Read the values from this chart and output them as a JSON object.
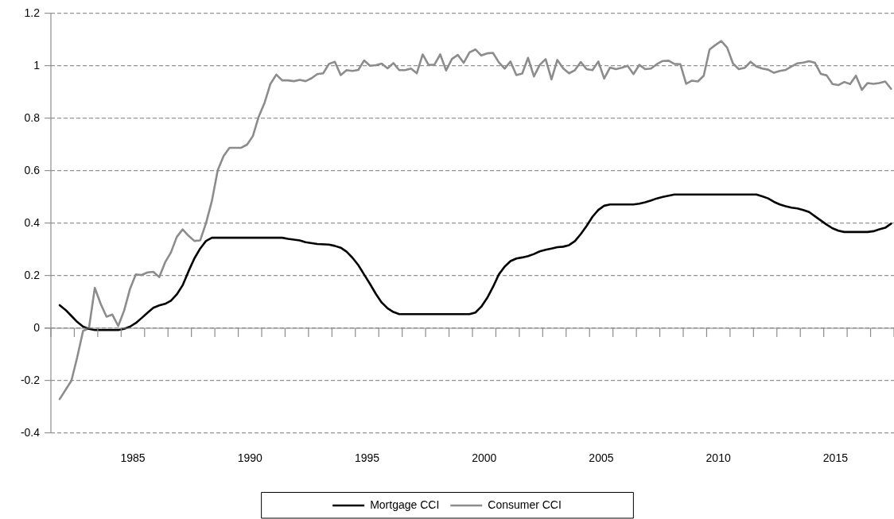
{
  "chart_data": {
    "type": "line",
    "xlim": [
      1982,
      2018
    ],
    "xticks": [
      {
        "value": 1982,
        "label": null
      },
      {
        "value": 1983,
        "label": null
      },
      {
        "value": 1984,
        "label": null
      },
      {
        "value": 1985,
        "label": null
      },
      {
        "value": 1985.5,
        "label": "1985"
      },
      {
        "value": 1986,
        "label": null
      },
      {
        "value": 1987,
        "label": null
      },
      {
        "value": 1988,
        "label": null
      },
      {
        "value": 1989,
        "label": null
      },
      {
        "value": 1990,
        "label": null
      },
      {
        "value": 1990.5,
        "label": "1990"
      },
      {
        "value": 1991,
        "label": null
      },
      {
        "value": 1992,
        "label": null
      },
      {
        "value": 1993,
        "label": null
      },
      {
        "value": 1994,
        "label": null
      },
      {
        "value": 1995,
        "label": null
      },
      {
        "value": 1995.5,
        "label": "1995"
      },
      {
        "value": 1996,
        "label": null
      },
      {
        "value": 1997,
        "label": null
      },
      {
        "value": 1998,
        "label": null
      },
      {
        "value": 1999,
        "label": null
      },
      {
        "value": 2000,
        "label": null
      },
      {
        "value": 2000.5,
        "label": "2000"
      },
      {
        "value": 2001,
        "label": null
      },
      {
        "value": 2002,
        "label": null
      },
      {
        "value": 2003,
        "label": null
      },
      {
        "value": 2004,
        "label": null
      },
      {
        "value": 2005,
        "label": null
      },
      {
        "value": 2005.5,
        "label": "2005"
      },
      {
        "value": 2006,
        "label": null
      },
      {
        "value": 2007,
        "label": null
      },
      {
        "value": 2008,
        "label": null
      },
      {
        "value": 2009,
        "label": null
      },
      {
        "value": 2010,
        "label": null
      },
      {
        "value": 2010.5,
        "label": "2010"
      },
      {
        "value": 2011,
        "label": null
      },
      {
        "value": 2012,
        "label": null
      },
      {
        "value": 2013,
        "label": null
      },
      {
        "value": 2014,
        "label": null
      },
      {
        "value": 2015,
        "label": null
      },
      {
        "value": 2015.5,
        "label": "2015"
      },
      {
        "value": 2016,
        "label": null
      },
      {
        "value": 2017,
        "label": null
      },
      {
        "value": 2018,
        "label": null
      }
    ],
    "ylim": [
      -0.4,
      1.2
    ],
    "yticks": [
      -0.4,
      -0.2,
      0,
      0.2,
      0.4,
      0.6,
      0.8,
      1,
      1.2
    ],
    "grid": "y",
    "legend": "bottom",
    "marker": "none",
    "line_style": "solid",
    "series": [
      {
        "name": "Mortgage CCI",
        "color": "#000000",
        "x": [
          1982.375,
          1982.625,
          1982.875,
          1983.125,
          1983.375,
          1983.625,
          1983.875,
          1984.875,
          1985.125,
          1985.375,
          1985.625,
          1985.875,
          1986.125,
          1986.375,
          1986.625,
          1986.875,
          1987.125,
          1987.375,
          1987.625,
          1987.875,
          1988.125,
          1988.375,
          1988.625,
          1988.875,
          1991.875,
          1992.125,
          1992.625,
          1992.875,
          1993.375,
          1993.875,
          1994.125,
          1994.375,
          1994.625,
          1994.875,
          1995.125,
          1995.375,
          1995.625,
          1995.875,
          1996.125,
          1996.375,
          1996.625,
          1996.875,
          1999.875,
          2000.125,
          2000.375,
          2000.625,
          2000.875,
          2001.125,
          2001.375,
          2001.625,
          2001.875,
          2002.125,
          2002.375,
          2002.625,
          2002.875,
          2003.125,
          2003.375,
          2003.625,
          2003.875,
          2004.125,
          2004.375,
          2004.625,
          2004.875,
          2005.125,
          2005.375,
          2005.625,
          2005.875,
          2006.875,
          2007.125,
          2007.375,
          2007.625,
          2007.875,
          2008.125,
          2008.625,
          2012.125,
          2012.375,
          2012.625,
          2012.875,
          2013.125,
          2013.375,
          2013.625,
          2013.875,
          2014.125,
          2014.375,
          2014.625,
          2014.875,
          2015.125,
          2015.375,
          2015.625,
          2015.875,
          2016.875,
          2017.125,
          2017.375,
          2017.625,
          2017.875
        ],
        "values": [
          0.088,
          0.07,
          0.047,
          0.024,
          0.006,
          -0.002,
          -0.007,
          -0.007,
          -0.002,
          0.006,
          0.02,
          0.039,
          0.059,
          0.078,
          0.087,
          0.093,
          0.105,
          0.129,
          0.164,
          0.217,
          0.266,
          0.304,
          0.333,
          0.345,
          0.345,
          0.341,
          0.335,
          0.328,
          0.321,
          0.319,
          0.314,
          0.307,
          0.292,
          0.269,
          0.241,
          0.205,
          0.169,
          0.131,
          0.098,
          0.076,
          0.062,
          0.054,
          0.054,
          0.06,
          0.082,
          0.115,
          0.157,
          0.205,
          0.235,
          0.256,
          0.266,
          0.27,
          0.275,
          0.283,
          0.293,
          0.299,
          0.304,
          0.309,
          0.311,
          0.317,
          0.332,
          0.359,
          0.39,
          0.425,
          0.451,
          0.467,
          0.472,
          0.472,
          0.475,
          0.48,
          0.487,
          0.495,
          0.501,
          0.51,
          0.51,
          0.503,
          0.495,
          0.482,
          0.472,
          0.465,
          0.46,
          0.457,
          0.451,
          0.443,
          0.427,
          0.411,
          0.395,
          0.381,
          0.372,
          0.367,
          0.367,
          0.37,
          0.377,
          0.383,
          0.399
        ]
      },
      {
        "name": "Consumer CCI",
        "color": "#8c8c8c",
        "x": [
          1982.375,
          1982.875,
          1983.125,
          1983.375,
          1983.625,
          1983.875,
          1984.125,
          1984.375,
          1984.625,
          1984.875,
          1985.125,
          1985.375,
          1985.625,
          1985.875,
          1986.125,
          1986.375,
          1986.625,
          1986.875,
          1987.125,
          1987.375,
          1987.625,
          1987.875,
          1988.125,
          1988.375,
          1988.625,
          1988.875,
          1989.125,
          1989.375,
          1989.625,
          1989.875,
          1990.125,
          1990.375,
          1990.625,
          1990.875,
          1991.125,
          1991.375,
          1991.625,
          1991.875,
          1992.125,
          1992.375,
          1992.625,
          1992.875,
          1993.125,
          1993.375,
          1993.625,
          1993.875,
          1994.125,
          1994.375,
          1994.625,
          1994.875,
          1995.125,
          1995.375,
          1995.625,
          1995.875,
          1996.125,
          1996.375,
          1996.625,
          1996.875,
          1997.125,
          1997.375,
          1997.625,
          1997.875,
          1998.125,
          1998.375,
          1998.625,
          1998.875,
          1999.125,
          1999.375,
          1999.625,
          1999.875,
          2000.125,
          2000.375,
          2000.625,
          2000.875,
          2001.125,
          2001.375,
          2001.625,
          2001.875,
          2002.125,
          2002.375,
          2002.625,
          2002.875,
          2003.125,
          2003.375,
          2003.625,
          2003.875,
          2004.125,
          2004.375,
          2004.625,
          2004.875,
          2005.125,
          2005.375,
          2005.625,
          2005.875,
          2006.125,
          2006.375,
          2006.625,
          2006.875,
          2007.125,
          2007.375,
          2007.625,
          2007.875,
          2008.125,
          2008.375,
          2008.625,
          2008.875,
          2009.125,
          2009.375,
          2009.625,
          2009.875,
          2010.125,
          2010.375,
          2010.625,
          2010.875,
          2011.125,
          2011.375,
          2011.625,
          2011.875,
          2012.125,
          2012.375,
          2012.625,
          2012.875,
          2013.125,
          2013.375,
          2013.625,
          2013.875,
          2014.125,
          2014.375,
          2014.625,
          2014.875,
          2015.125,
          2015.375,
          2015.625,
          2015.875,
          2016.125,
          2016.375,
          2016.625,
          2016.875,
          2017.125,
          2017.375,
          2017.625,
          2017.875
        ],
        "values": [
          -0.27,
          -0.2,
          -0.11,
          -0.01,
          0.0,
          0.154,
          0.093,
          0.044,
          0.052,
          0.009,
          0.067,
          0.149,
          0.205,
          0.203,
          0.213,
          0.215,
          0.195,
          0.251,
          0.289,
          0.348,
          0.377,
          0.353,
          0.333,
          0.335,
          0.401,
          0.486,
          0.603,
          0.657,
          0.688,
          0.688,
          0.688,
          0.7,
          0.733,
          0.807,
          0.86,
          0.932,
          0.967,
          0.945,
          0.945,
          0.942,
          0.947,
          0.942,
          0.953,
          0.969,
          0.972,
          1.008,
          1.016,
          0.965,
          0.984,
          0.981,
          0.985,
          1.021,
          1.001,
          1.003,
          1.009,
          0.991,
          1.011,
          0.984,
          0.984,
          0.99,
          0.972,
          1.044,
          1.004,
          1.005,
          1.044,
          0.983,
          1.027,
          1.042,
          1.012,
          1.052,
          1.063,
          1.04,
          1.048,
          1.05,
          1.014,
          0.99,
          1.017,
          0.965,
          0.971,
          1.031,
          0.96,
          1.004,
          1.026,
          0.949,
          1.023,
          0.991,
          0.972,
          0.984,
          1.015,
          0.988,
          0.984,
          1.017,
          0.952,
          0.994,
          0.988,
          0.993,
          1.001,
          0.969,
          1.004,
          0.988,
          0.99,
          1.007,
          1.019,
          1.02,
          1.008,
          1.007,
          0.932,
          0.944,
          0.941,
          0.963,
          1.063,
          1.08,
          1.095,
          1.07,
          1.009,
          0.988,
          0.993,
          1.016,
          0.998,
          0.99,
          0.986,
          0.974,
          0.981,
          0.985,
          0.998,
          1.01,
          1.013,
          1.018,
          1.012,
          0.97,
          0.964,
          0.931,
          0.927,
          0.939,
          0.931,
          0.963,
          0.909,
          0.935,
          0.932,
          0.935,
          0.941,
          0.913
        ]
      }
    ]
  }
}
